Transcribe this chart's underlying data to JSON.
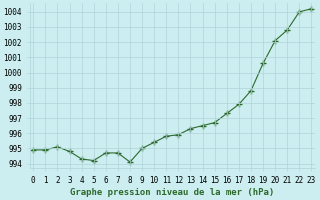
{
  "x": [
    0,
    1,
    2,
    3,
    4,
    5,
    6,
    7,
    8,
    9,
    10,
    11,
    12,
    13,
    14,
    15,
    16,
    17,
    18,
    19,
    20,
    21,
    22,
    23
  ],
  "y": [
    994.9,
    994.9,
    995.1,
    994.8,
    994.3,
    994.2,
    994.7,
    994.7,
    994.1,
    995.0,
    995.4,
    995.8,
    995.9,
    996.3,
    996.5,
    996.7,
    997.3,
    997.9,
    998.8,
    1000.6,
    1002.1,
    1002.8,
    1004.0,
    1004.2
  ],
  "line_color": "#2d6a2d",
  "marker_color": "#2d6a2d",
  "bg_color": "#cceef0",
  "grid_color": "#b0d4d8",
  "xlabel": "Graphe pression niveau de la mer (hPa)",
  "ylim": [
    993.7,
    1004.55
  ],
  "yticks": [
    994,
    995,
    996,
    997,
    998,
    999,
    1000,
    1001,
    1002,
    1003,
    1004
  ],
  "xtick_labels": [
    "0",
    "1",
    "2",
    "3",
    "4",
    "5",
    "6",
    "7",
    "8",
    "9",
    "10",
    "11",
    "12",
    "13",
    "14",
    "15",
    "16",
    "17",
    "18",
    "19",
    "20",
    "21",
    "22",
    "23"
  ],
  "tick_fontsize": 5.5,
  "xlabel_fontsize": 6.5
}
